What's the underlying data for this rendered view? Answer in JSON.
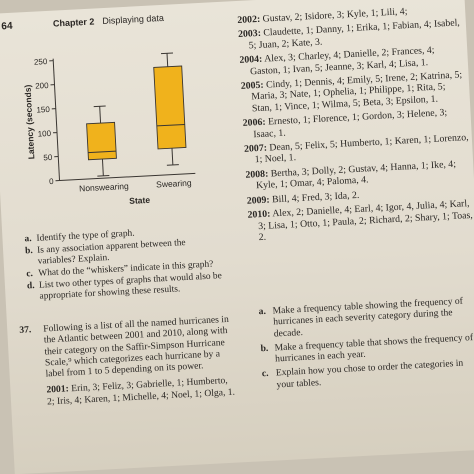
{
  "header": {
    "page_number": "64",
    "chapter": "Chapter 2",
    "chapter_title": "Displaying data"
  },
  "chart_data": {
    "type": "boxplot",
    "ylabel": "Latency (seconds)",
    "xlabel": "State",
    "ylim": [
      0,
      250
    ],
    "yticks": [
      0,
      50,
      100,
      150,
      200,
      250
    ],
    "categories": [
      "Nonswearing",
      "Swearing"
    ],
    "boxes": [
      {
        "name": "Nonswearing",
        "min": 5,
        "q1": 40,
        "median": 55,
        "q3": 115,
        "max": 150
      },
      {
        "name": "Swearing",
        "min": 20,
        "q1": 55,
        "median": 103,
        "q3": 225,
        "max": 253
      }
    ],
    "box_color": "#f0b21c"
  },
  "questions": [
    {
      "label": "a.",
      "text": "Identify the type of graph."
    },
    {
      "label": "b.",
      "text": "Is any association apparent between the variables? Explain."
    },
    {
      "label": "c.",
      "text": "What do the “whiskers” indicate in this graph?"
    },
    {
      "label": "d.",
      "text": "List two other types of graphs that would also be appropriate for showing these results."
    }
  ],
  "problem37": {
    "number": "37.",
    "text": "Following is a list of all the named hurricanes in the Atlantic between 2001 and 2010, along with their category on the Saffir-Simpson Hurricane Scale,⁹ which categorizes each hurricane by a label from 1 to 5 depending on its power.",
    "year2001": "2001:",
    "list2001": "Erin, 3; Feliz, 3; Gabrielle, 1; Humberto, 2; Iris, 4; Karen, 1; Michelle, 4; Noel, 1; Olga, 1."
  },
  "hurricanes": [
    {
      "year": "2002:",
      "list": "Gustav, 2; Isidore, 3; Kyle, 1; Lili, 4;"
    },
    {
      "year": "2003:",
      "list": "Claudette, 1; Danny, 1; Erika, 1; Fabian, 4; Isabel, 5; Juan, 2; Kate, 3."
    },
    {
      "year": "2004:",
      "list": "Alex, 3; Charley, 4; Danielle, 2; Frances, 4; Gaston, 1; Ivan, 5; Jeanne, 3; Karl, 4; Lisa, 1."
    },
    {
      "year": "2005:",
      "list": "Cindy, 1; Dennis, 4; Emily, 5; Irene, 2; Katrina, 5; Maria, 3; Nate, 1; Ophelia, 1; Philippe, 1; Rita, 5; Stan, 1; Vince, 1; Wilma, 5; Beta, 3; Epsilon, 1."
    },
    {
      "year": "2006:",
      "list": "Ernesto, 1; Florence, 1; Gordon, 3; Helene, 3; Isaac, 1."
    },
    {
      "year": "2007:",
      "list": "Dean, 5; Felix, 5; Humberto, 1; Karen, 1; Lorenzo, 1; Noel, 1."
    },
    {
      "year": "2008:",
      "list": "Bertha, 3; Dolly, 2; Gustav, 4; Hanna, 1; Ike, 4; Kyle, 1; Omar, 4; Paloma, 4."
    },
    {
      "year": "2009:",
      "list": "Bill, 4; Fred, 3; Ida, 2."
    },
    {
      "year": "2010:",
      "list": "Alex, 2; Danielle, 4; Earl, 4; Igor, 4, Julia, 4; Karl, 3; Lisa, 1; Otto, 1; Paula, 2; Richard, 2; Shary, 1; Toas, 2."
    }
  ],
  "tasks": [
    {
      "label": "a.",
      "text": "Make a frequency table showing the frequency of hurricanes in each severity category during the decade."
    },
    {
      "label": "b.",
      "text": "Make a frequency table that shows the frequency of hurricanes in each year."
    },
    {
      "label": "c.",
      "text": "Explain how you chose to order the categories in your tables."
    }
  ]
}
